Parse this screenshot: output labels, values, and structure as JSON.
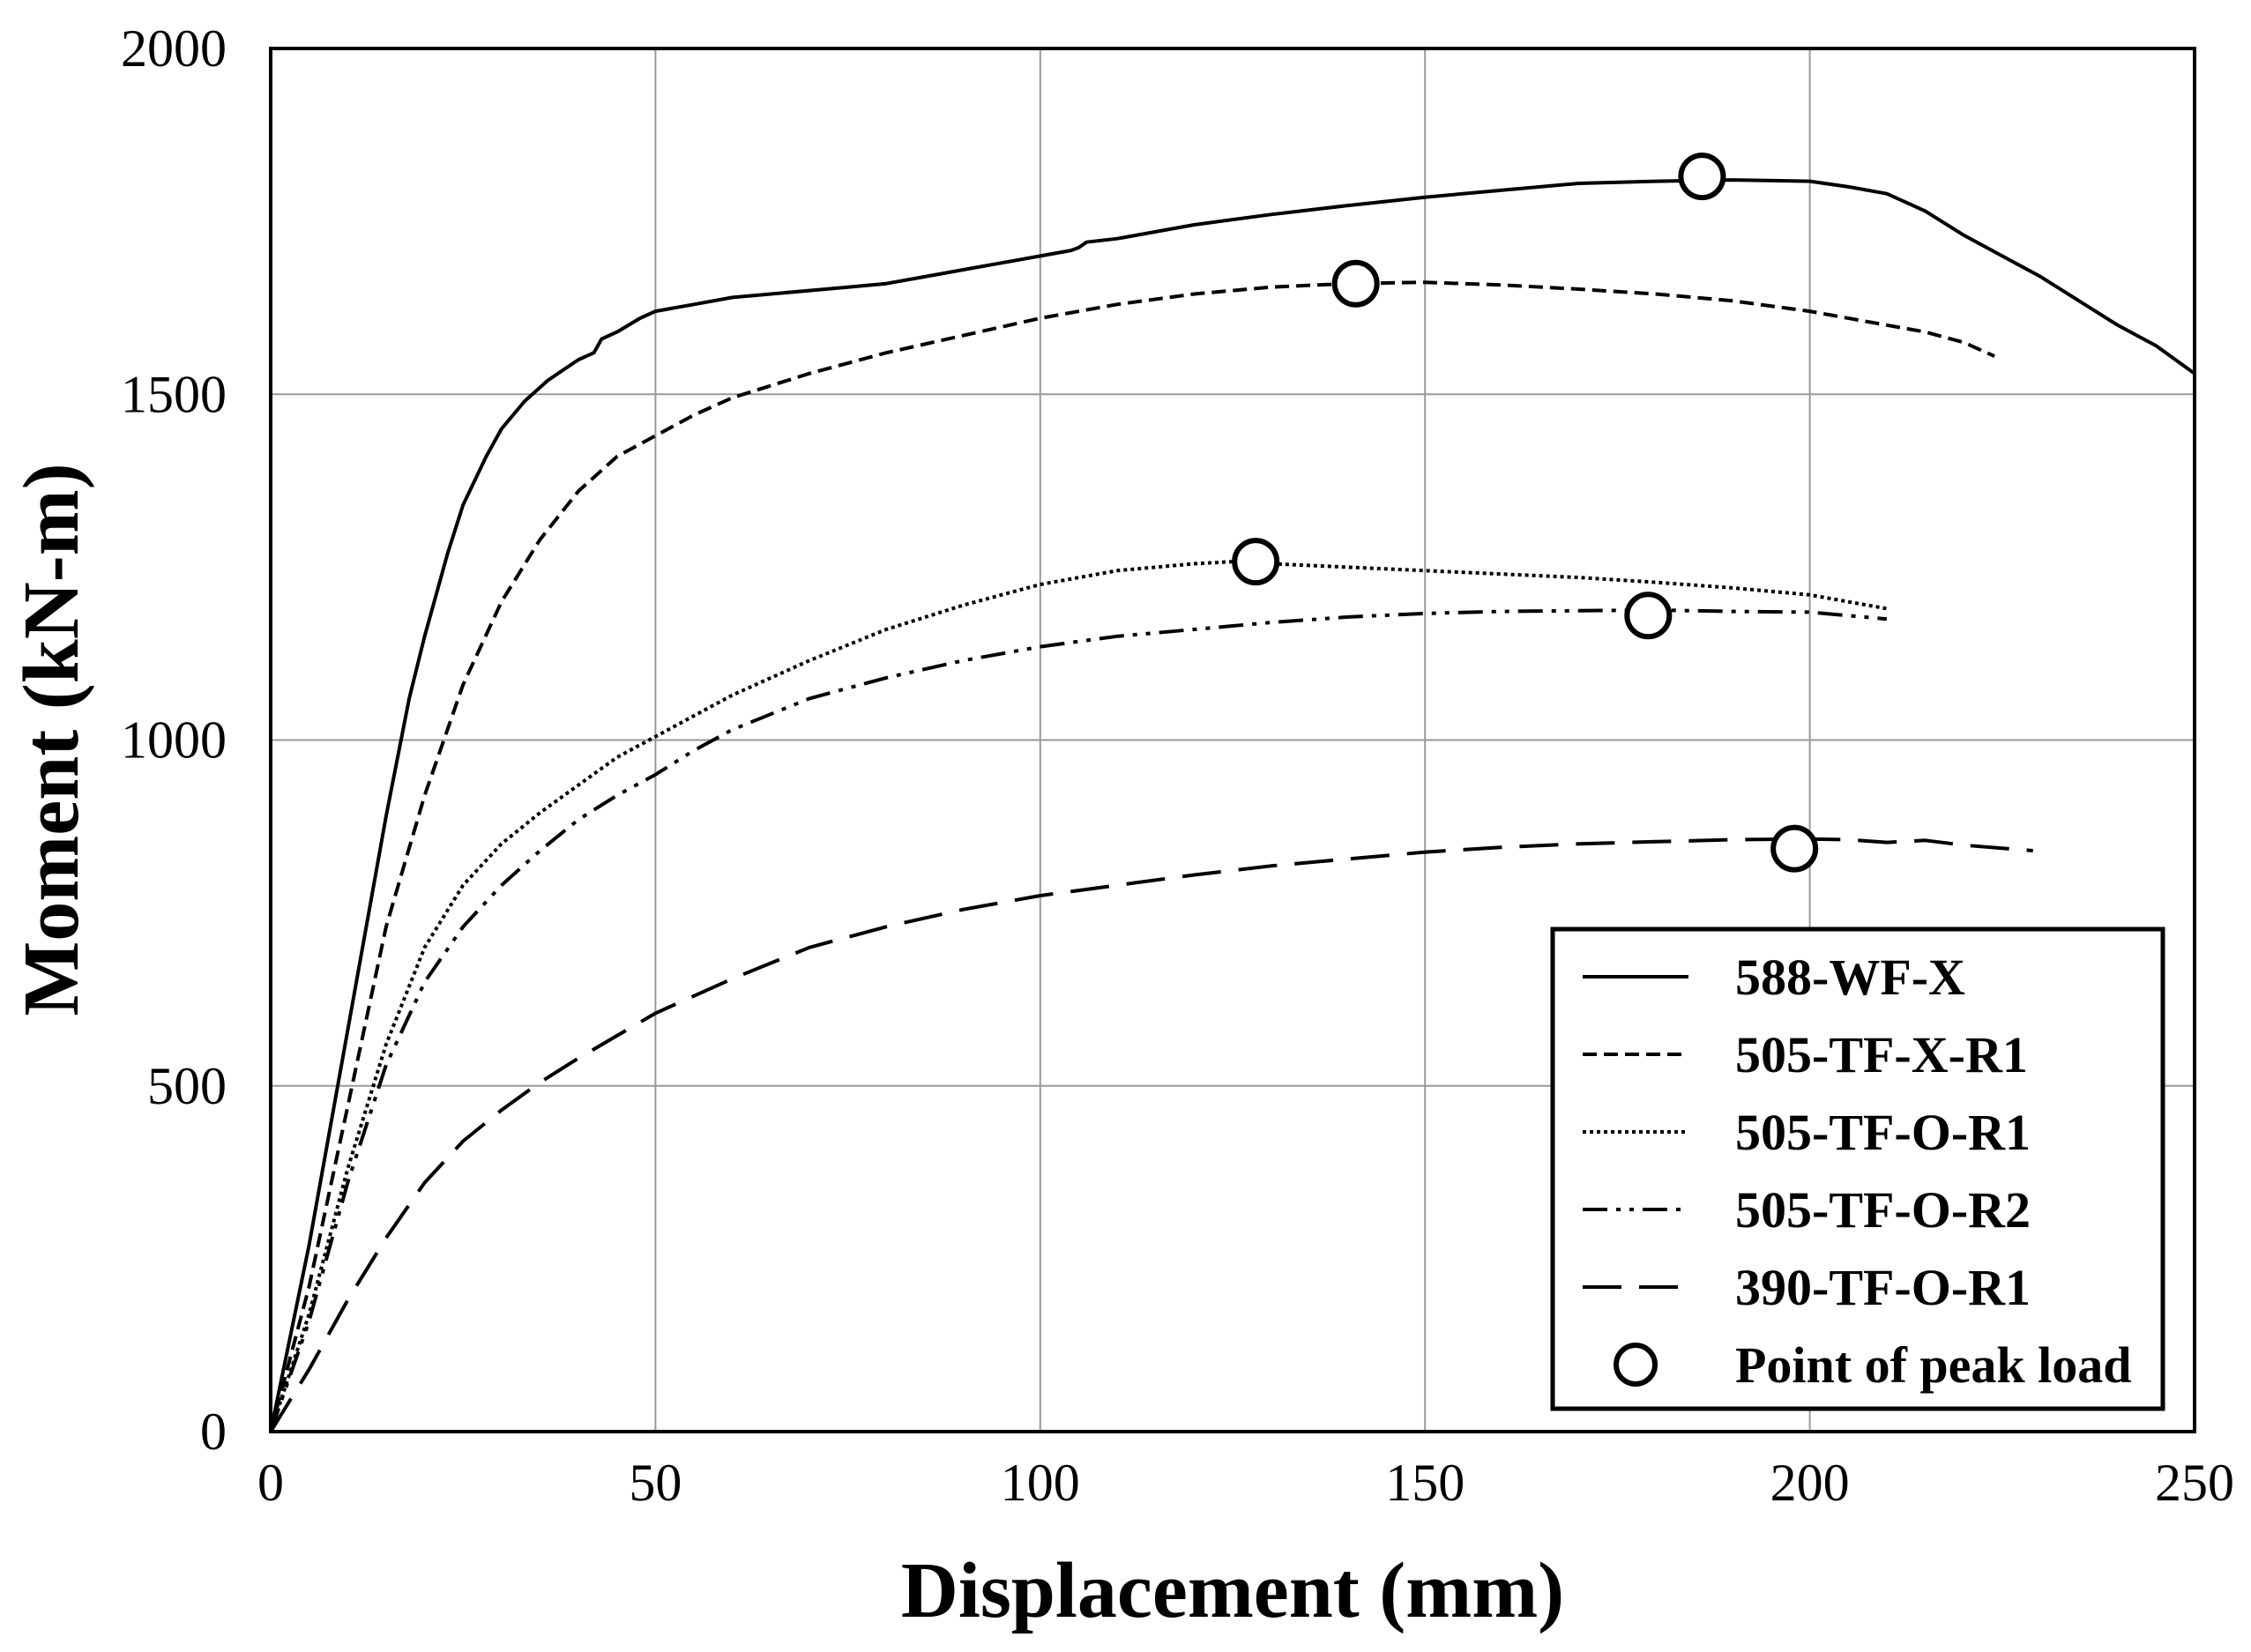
{
  "chart_data": {
    "type": "line",
    "title": "",
    "xlabel": "Displacement (mm)",
    "ylabel": "Moment (kN-m)",
    "xlim": [
      0,
      250
    ],
    "ylim": [
      0,
      2000
    ],
    "xticks": [
      0,
      50,
      100,
      150,
      200,
      250
    ],
    "yticks": [
      0,
      500,
      1000,
      1500,
      2000
    ],
    "xtick_labels": [
      "0",
      "50",
      "100",
      "150",
      "200",
      "250"
    ],
    "ytick_labels": [
      "0",
      "500",
      "1000",
      "1500",
      "2000"
    ],
    "grid": true,
    "legend_position": "bottom-right",
    "series": [
      {
        "name": "588-WF-X",
        "dash": "solid",
        "x": [
          0,
          5,
          10,
          15,
          18,
          20,
          23,
          25,
          28,
          30,
          33,
          36,
          40,
          42,
          43,
          45,
          48,
          50,
          55,
          60,
          65,
          70,
          75,
          80,
          85,
          90,
          95,
          100,
          104,
          105,
          106,
          110,
          120,
          130,
          140,
          150,
          160,
          170,
          180,
          190,
          200,
          205,
          210,
          215,
          220,
          230,
          240,
          245,
          250
        ],
        "y": [
          0,
          270,
          580,
          890,
          1060,
          1150,
          1270,
          1340,
          1410,
          1450,
          1490,
          1520,
          1550,
          1560,
          1580,
          1590,
          1610,
          1620,
          1630,
          1640,
          1645,
          1650,
          1655,
          1660,
          1670,
          1680,
          1690,
          1700,
          1708,
          1712,
          1720,
          1725,
          1745,
          1760,
          1773,
          1785,
          1795,
          1805,
          1808,
          1810,
          1808,
          1800,
          1790,
          1765,
          1730,
          1670,
          1600,
          1570,
          1530
        ]
      },
      {
        "name": "505-TF-X-R1",
        "dash": "short-dash",
        "x": [
          0,
          5,
          10,
          15,
          20,
          25,
          30,
          35,
          40,
          45,
          50,
          55,
          60,
          70,
          80,
          90,
          100,
          110,
          120,
          130,
          140,
          150,
          160,
          170,
          180,
          190,
          200,
          210,
          215,
          220,
          224
        ],
        "y": [
          0,
          210,
          470,
          730,
          920,
          1080,
          1200,
          1290,
          1360,
          1410,
          1440,
          1470,
          1495,
          1530,
          1560,
          1585,
          1610,
          1630,
          1645,
          1655,
          1660,
          1662,
          1658,
          1652,
          1645,
          1635,
          1620,
          1600,
          1590,
          1575,
          1555
        ]
      },
      {
        "name": "505-TF-O-R1",
        "dash": "dotted",
        "x": [
          0,
          5,
          10,
          15,
          20,
          25,
          30,
          35,
          40,
          45,
          50,
          55,
          60,
          70,
          80,
          90,
          100,
          110,
          120,
          125,
          130,
          140,
          150,
          160,
          170,
          180,
          190,
          200,
          205,
          210
        ],
        "y": [
          0,
          170,
          380,
          560,
          700,
          790,
          850,
          895,
          935,
          975,
          1005,
          1035,
          1065,
          1115,
          1160,
          1195,
          1225,
          1245,
          1255,
          1258,
          1255,
          1250,
          1245,
          1240,
          1235,
          1228,
          1220,
          1210,
          1200,
          1190
        ]
      },
      {
        "name": "505-TF-O-R2",
        "dash": "dash-dot-dot",
        "x": [
          0,
          5,
          10,
          15,
          20,
          25,
          30,
          35,
          40,
          45,
          50,
          55,
          60,
          70,
          80,
          90,
          100,
          110,
          120,
          130,
          140,
          150,
          160,
          170,
          180,
          190,
          200,
          210
        ],
        "y": [
          0,
          160,
          360,
          530,
          650,
          730,
          790,
          840,
          885,
          920,
          950,
          985,
          1015,
          1060,
          1090,
          1115,
          1135,
          1150,
          1160,
          1170,
          1178,
          1183,
          1186,
          1187,
          1188,
          1186,
          1185,
          1175
        ]
      },
      {
        "name": "390-TF-O-R1",
        "dash": "long-dash",
        "x": [
          0,
          5,
          10,
          15,
          20,
          25,
          30,
          35,
          40,
          50,
          60,
          70,
          80,
          90,
          100,
          110,
          120,
          130,
          140,
          150,
          160,
          170,
          180,
          190,
          200,
          205,
          210,
          215,
          220,
          229
        ],
        "y": [
          0,
          90,
          190,
          280,
          360,
          420,
          465,
          505,
          540,
          605,
          655,
          700,
          730,
          755,
          775,
          790,
          805,
          818,
          828,
          838,
          845,
          850,
          853,
          856,
          857,
          856,
          852,
          855,
          848,
          840
        ]
      }
    ],
    "peak_points": [
      {
        "series": "588-WF-X",
        "x": 186,
        "y": 1815
      },
      {
        "series": "505-TF-X-R1",
        "x": 141,
        "y": 1660
      },
      {
        "series": "505-TF-O-R1",
        "x": 128,
        "y": 1258
      },
      {
        "series": "505-TF-O-R2",
        "x": 179,
        "y": 1180
      },
      {
        "series": "390-TF-O-R1",
        "x": 198,
        "y": 843
      }
    ],
    "legend": [
      {
        "label": "588-WF-X",
        "dash": "solid"
      },
      {
        "label": "505-TF-X-R1",
        "dash": "short-dash"
      },
      {
        "label": "505-TF-O-R1",
        "dash": "dotted"
      },
      {
        "label": "505-TF-O-R2",
        "dash": "dash-dot-dot"
      },
      {
        "label": "390-TF-O-R1",
        "dash": "long-dash"
      },
      {
        "label": "Point of peak load",
        "dash": "marker"
      }
    ],
    "colors": {
      "line": "#000000",
      "grid": "#999999",
      "background": "#ffffff"
    }
  }
}
